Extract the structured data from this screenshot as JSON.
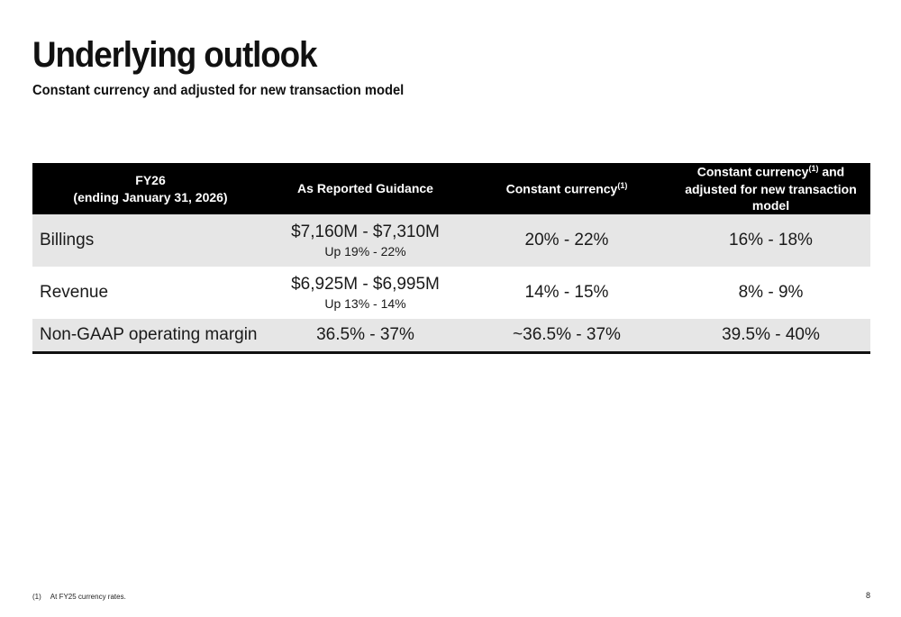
{
  "slide": {
    "title": "Underlying outlook",
    "subtitle": "Constant currency and adjusted for new transaction model",
    "page_number": "8"
  },
  "table": {
    "headers": {
      "col0_line1": "FY26",
      "col0_line2": "(ending January 31, 2026)",
      "col1": "As Reported Guidance",
      "col2": "Constant currency",
      "col2_sup": "(1)",
      "col3_pre": "Constant currency",
      "col3_sup": "(1)",
      "col3_post": " and adjusted for new transaction model"
    },
    "rows": [
      {
        "label": "Billings",
        "reported": "$7,160M - $7,310M",
        "reported_sub": "Up 19% - 22%",
        "constant": "20% - 22%",
        "adjusted": "16% - 18%"
      },
      {
        "label": "Revenue",
        "reported": "$6,925M - $6,995M",
        "reported_sub": "Up 13% - 14%",
        "constant": "14% - 15%",
        "adjusted": "8% - 9%"
      },
      {
        "label": "Non-GAAP operating margin",
        "reported": "36.5% - 37%",
        "constant": "~36.5% - 37%",
        "adjusted": "39.5% - 40%"
      }
    ]
  },
  "footnote": {
    "marker": "(1)",
    "text": "At FY25 currency rates."
  }
}
